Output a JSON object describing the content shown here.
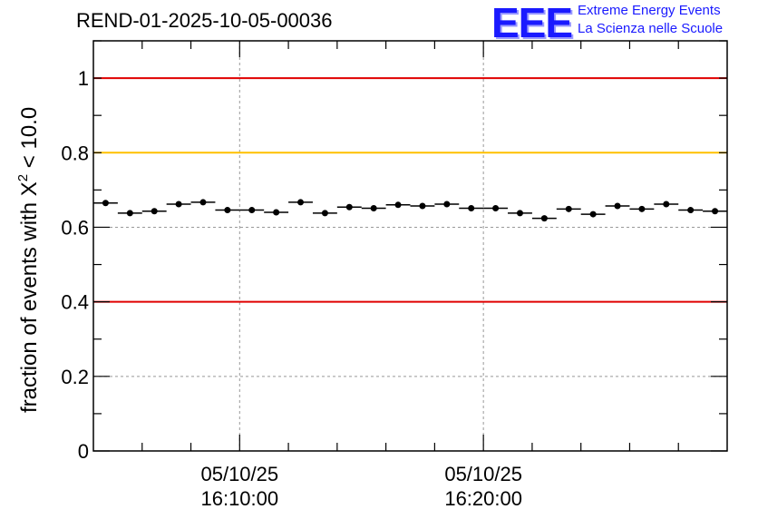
{
  "header": {
    "run_title": "REND-01-2025-10-05-00036",
    "logo_text": "EEE",
    "logo_line1": "Extreme Energy Events",
    "logo_line2": "La Scienza nelle Scuole"
  },
  "chart_data": {
    "type": "scatter",
    "title": "REND-01-2025-10-05-00036",
    "ylabel": "fraction of events with X² < 10.0",
    "ylabel_main": "fraction of events with X",
    "ylabel_sup": "2",
    "ylabel_tail": " < 10.0",
    "xlim_minutes": [
      0,
      26
    ],
    "ylim": [
      0,
      1.1
    ],
    "yticks": [
      {
        "value": 0,
        "label": "0"
      },
      {
        "value": 0.2,
        "label": "0.2"
      },
      {
        "value": 0.4,
        "label": "0.4"
      },
      {
        "value": 0.6,
        "label": "0.6"
      },
      {
        "value": 0.8,
        "label": "0.8"
      },
      {
        "value": 1,
        "label": "1"
      }
    ],
    "xticks": [
      {
        "minute": 6,
        "line1": "05/10/25",
        "line2": "16:10:00"
      },
      {
        "minute": 16,
        "line1": "05/10/25",
        "line2": "16:20:00"
      }
    ],
    "reference_lines": [
      {
        "y": 1.0,
        "color": "#e00000"
      },
      {
        "y": 0.8,
        "color": "#ffc000"
      },
      {
        "y": 0.4,
        "color": "#e00000"
      }
    ],
    "bin_width_minutes": 1,
    "series": [
      {
        "name": "fraction",
        "x": [
          0.5,
          1.5,
          2.5,
          3.5,
          4.5,
          5.5,
          6.5,
          7.5,
          8.5,
          9.5,
          10.5,
          11.5,
          12.5,
          13.5,
          14.5,
          15.5,
          16.5,
          17.5,
          18.5,
          19.5,
          20.5,
          21.5,
          22.5,
          23.5,
          24.5,
          25.5
        ],
        "y": [
          0.665,
          0.638,
          0.643,
          0.662,
          0.667,
          0.646,
          0.646,
          0.64,
          0.667,
          0.638,
          0.654,
          0.651,
          0.66,
          0.657,
          0.662,
          0.651,
          0.651,
          0.638,
          0.624,
          0.649,
          0.635,
          0.657,
          0.649,
          0.662,
          0.646,
          0.643
        ]
      }
    ]
  }
}
